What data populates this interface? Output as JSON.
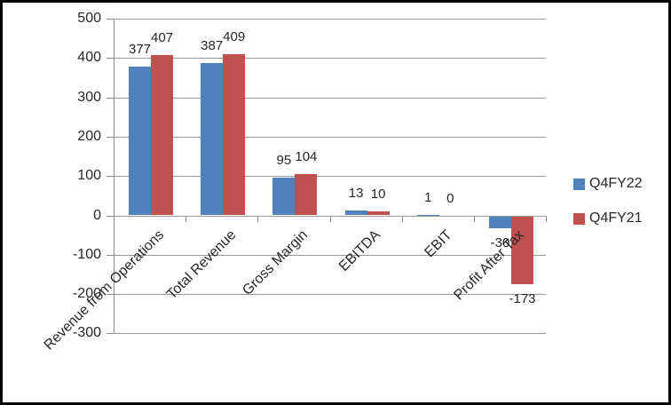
{
  "window": {
    "background": "#ffffff",
    "border_color": "#000000"
  },
  "chart_data": {
    "type": "bar",
    "title": "",
    "xlabel": "",
    "ylabel": "",
    "categories": [
      "Revenue from Operations",
      "Total Revenue",
      "Gross Margin",
      "EBITDA",
      "EBIT",
      "Profit After Tax"
    ],
    "series": [
      {
        "name": "Q4FY22",
        "color": "#4f81bd",
        "values": [
          377,
          387,
          95,
          13,
          1,
          -30
        ]
      },
      {
        "name": "Q4FY21",
        "color": "#c0504d",
        "values": [
          407,
          409,
          104,
          10,
          0,
          -173
        ]
      }
    ],
    "data_labels": true,
    "ylim": [
      -300,
      500
    ],
    "yticks": [
      500,
      400,
      300,
      200,
      100,
      0,
      -100,
      -200,
      -300
    ],
    "grid": true,
    "gridline_color": "#989898",
    "axis_color": "#8a8a8a",
    "text_color": "#262626",
    "legend_position": "right"
  }
}
